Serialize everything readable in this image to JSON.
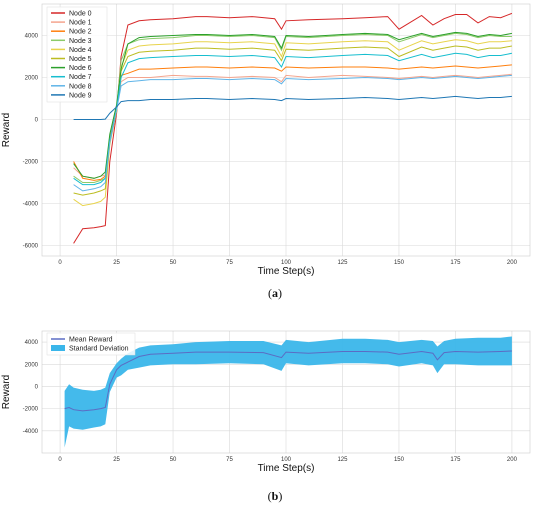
{
  "captions": {
    "a_label": "a",
    "b_label": "b"
  },
  "chart_data": [
    {
      "type": "line",
      "xlabel": "Time Step(s)",
      "ylabel": "Reward",
      "xlim": [
        -8,
        208
      ],
      "ylim": [
        -6500,
        5500
      ],
      "xticks": [
        0,
        25,
        50,
        75,
        100,
        125,
        150,
        175,
        200
      ],
      "yticks": [
        -6000,
        -4000,
        -2000,
        0,
        2000,
        4000
      ],
      "legend_position": "top-left",
      "grid": true,
      "series": [
        {
          "name": "Node 0",
          "color": "#d62728",
          "x": [
            6,
            10,
            15,
            18,
            20,
            22,
            25,
            27,
            30,
            35,
            40,
            50,
            60,
            65,
            75,
            85,
            95,
            98,
            100,
            110,
            125,
            135,
            145,
            150,
            160,
            165,
            170,
            175,
            180,
            185,
            190,
            195,
            200
          ],
          "y": [
            -5900,
            -5200,
            -5150,
            -5100,
            -5050,
            -2000,
            300,
            3000,
            4500,
            4700,
            4750,
            4800,
            4900,
            4900,
            4850,
            4900,
            4800,
            4300,
            4700,
            4750,
            4800,
            4850,
            4900,
            4300,
            4950,
            4500,
            4800,
            5000,
            5000,
            4600,
            4900,
            4850,
            5050
          ]
        },
        {
          "name": "Node 1",
          "color": "#f4a58e",
          "x": [
            6,
            10,
            15,
            18,
            20,
            22,
            25,
            27,
            30,
            35,
            40,
            50,
            60,
            65,
            75,
            85,
            95,
            98,
            100,
            110,
            125,
            135,
            145,
            150,
            160,
            165,
            170,
            175,
            180,
            185,
            190,
            195,
            200
          ],
          "y": [
            -2300,
            -2700,
            -2800,
            -2700,
            -2650,
            -800,
            600,
            1800,
            2000,
            2000,
            2000,
            2100,
            2050,
            2050,
            2000,
            2050,
            2000,
            1800,
            2100,
            2000,
            2100,
            2050,
            2000,
            1950,
            2050,
            2000,
            2050,
            2100,
            2050,
            2000,
            2050,
            2100,
            2150
          ]
        },
        {
          "name": "Node 2",
          "color": "#ff7f0e",
          "x": [
            6,
            10,
            15,
            18,
            20,
            22,
            25,
            27,
            30,
            35,
            40,
            50,
            60,
            65,
            75,
            85,
            95,
            98,
            100,
            110,
            125,
            135,
            145,
            150,
            160,
            165,
            170,
            175,
            180,
            185,
            190,
            195,
            200
          ],
          "y": [
            -2000,
            -2800,
            -2900,
            -2850,
            -2700,
            -900,
            400,
            2100,
            2200,
            2400,
            2400,
            2450,
            2500,
            2500,
            2450,
            2500,
            2450,
            2300,
            2500,
            2450,
            2500,
            2500,
            2450,
            2400,
            2500,
            2450,
            2500,
            2550,
            2500,
            2450,
            2500,
            2550,
            2600
          ]
        },
        {
          "name": "Node 3",
          "color": "#8ccb6a",
          "x": [
            6,
            10,
            15,
            18,
            20,
            22,
            25,
            27,
            30,
            35,
            40,
            50,
            60,
            65,
            75,
            85,
            95,
            98,
            100,
            110,
            125,
            135,
            145,
            150,
            160,
            165,
            170,
            175,
            180,
            185,
            190,
            195,
            200
          ],
          "y": [
            -2700,
            -3000,
            -3000,
            -2900,
            -2800,
            -1000,
            500,
            2800,
            3600,
            3800,
            3850,
            3900,
            4000,
            4000,
            3950,
            4000,
            3900,
            3300,
            3950,
            3900,
            4000,
            4050,
            4000,
            3700,
            4050,
            3900,
            4000,
            4100,
            4050,
            3900,
            4000,
            3950,
            3950
          ]
        },
        {
          "name": "Node 4",
          "color": "#e8d44d",
          "x": [
            6,
            10,
            15,
            18,
            20,
            22,
            25,
            27,
            30,
            35,
            40,
            50,
            60,
            65,
            75,
            85,
            95,
            98,
            100,
            110,
            125,
            135,
            145,
            150,
            160,
            165,
            170,
            175,
            180,
            185,
            190,
            195,
            200
          ],
          "y": [
            -3800,
            -4100,
            -4000,
            -3900,
            -3700,
            -1200,
            400,
            2500,
            3300,
            3500,
            3550,
            3600,
            3700,
            3700,
            3650,
            3700,
            3600,
            3000,
            3650,
            3600,
            3700,
            3750,
            3700,
            3300,
            3750,
            3600,
            3700,
            3800,
            3750,
            3600,
            3700,
            3700,
            3750
          ]
        },
        {
          "name": "Node 5",
          "color": "#bcbd22",
          "x": [
            6,
            10,
            15,
            18,
            20,
            22,
            25,
            27,
            30,
            35,
            40,
            50,
            60,
            65,
            75,
            85,
            95,
            98,
            100,
            110,
            125,
            135,
            145,
            150,
            160,
            165,
            170,
            175,
            180,
            185,
            190,
            195,
            200
          ],
          "y": [
            -3500,
            -3600,
            -3500,
            -3400,
            -3300,
            -1100,
            450,
            2300,
            3000,
            3200,
            3250,
            3300,
            3400,
            3400,
            3350,
            3400,
            3300,
            2800,
            3350,
            3300,
            3400,
            3450,
            3400,
            3000,
            3450,
            3300,
            3400,
            3500,
            3450,
            3300,
            3400,
            3400,
            3500
          ]
        },
        {
          "name": "Node 6",
          "color": "#2ca02c",
          "x": [
            6,
            10,
            15,
            18,
            20,
            22,
            25,
            27,
            30,
            35,
            40,
            50,
            60,
            65,
            75,
            85,
            95,
            98,
            100,
            110,
            125,
            135,
            145,
            150,
            160,
            165,
            170,
            175,
            180,
            185,
            190,
            195,
            200
          ],
          "y": [
            -2100,
            -2700,
            -2800,
            -2700,
            -2500,
            -700,
            700,
            2400,
            3600,
            3900,
            3950,
            4000,
            4050,
            4050,
            4000,
            4050,
            3950,
            3400,
            4000,
            3950,
            4050,
            4100,
            4050,
            3800,
            4100,
            3950,
            4050,
            4150,
            4100,
            3950,
            4050,
            4000,
            4100
          ]
        },
        {
          "name": "Node 7",
          "color": "#17becf",
          "x": [
            6,
            10,
            15,
            18,
            20,
            22,
            25,
            27,
            30,
            35,
            40,
            50,
            60,
            65,
            75,
            85,
            95,
            98,
            100,
            110,
            125,
            135,
            145,
            150,
            160,
            165,
            170,
            175,
            180,
            185,
            190,
            195,
            200
          ],
          "y": [
            -2800,
            -3100,
            -3100,
            -3000,
            -2800,
            -1000,
            500,
            2000,
            2700,
            2900,
            2950,
            3000,
            3050,
            3050,
            3000,
            3050,
            2950,
            2500,
            3000,
            2950,
            3050,
            3100,
            3050,
            2800,
            3100,
            2950,
            3050,
            3150,
            3100,
            2950,
            3050,
            3050,
            3150
          ]
        },
        {
          "name": "Node 8",
          "color": "#5fb4e8",
          "x": [
            6,
            10,
            15,
            18,
            20,
            22,
            25,
            27,
            30,
            35,
            40,
            50,
            60,
            65,
            75,
            85,
            95,
            98,
            100,
            110,
            125,
            135,
            145,
            150,
            160,
            165,
            170,
            175,
            180,
            185,
            190,
            195,
            200
          ],
          "y": [
            -3100,
            -3400,
            -3300,
            -3200,
            -3000,
            -1100,
            450,
            1600,
            1800,
            1850,
            1900,
            1900,
            1950,
            1950,
            1900,
            1950,
            1900,
            1700,
            1950,
            1900,
            1950,
            2000,
            1950,
            1900,
            2000,
            1950,
            2000,
            2050,
            2000,
            1950,
            2000,
            2050,
            2100
          ]
        },
        {
          "name": "Node 9",
          "color": "#1f77b4",
          "x": [
            6,
            10,
            15,
            18,
            20,
            22,
            25,
            27,
            30,
            35,
            40,
            50,
            60,
            65,
            75,
            85,
            95,
            98,
            100,
            110,
            125,
            135,
            145,
            150,
            160,
            165,
            170,
            175,
            180,
            185,
            190,
            195,
            200
          ],
          "y": [
            0,
            0,
            0,
            0,
            20,
            300,
            600,
            850,
            900,
            900,
            950,
            950,
            1000,
            1000,
            950,
            1000,
            950,
            900,
            1000,
            950,
            1000,
            1050,
            1000,
            950,
            1050,
            1000,
            1050,
            1100,
            1050,
            1000,
            1050,
            1050,
            1100
          ]
        }
      ]
    },
    {
      "type": "area",
      "xlabel": "Time Step(s)",
      "ylabel": "Reward",
      "xlim": [
        -8,
        208
      ],
      "ylim": [
        -6000,
        5000
      ],
      "xticks": [
        0,
        25,
        50,
        75,
        100,
        125,
        150,
        175,
        200
      ],
      "yticks": [
        -4000,
        -2000,
        0,
        2000,
        4000
      ],
      "legend_position": "top-left",
      "grid": true,
      "series": [
        {
          "name": "Mean Reward",
          "color": "#5b6cc4",
          "x": [
            2,
            4,
            6,
            10,
            15,
            18,
            20,
            22,
            25,
            27,
            30,
            35,
            40,
            50,
            60,
            75,
            90,
            98,
            100,
            110,
            125,
            135,
            145,
            150,
            160,
            165,
            167,
            170,
            175,
            185,
            195,
            200
          ],
          "y": [
            -2000,
            -1900,
            -2100,
            -2200,
            -2100,
            -2000,
            -1900,
            200,
            1500,
            1900,
            2200,
            2700,
            2900,
            3000,
            3100,
            3100,
            3050,
            2600,
            3100,
            3000,
            3150,
            3150,
            3100,
            2900,
            3150,
            3000,
            2400,
            3050,
            3150,
            3100,
            3150,
            3200
          ]
        },
        {
          "name": "Standard Deviation",
          "color": "#3ab6ea",
          "x": [
            2,
            4,
            6,
            10,
            15,
            18,
            20,
            22,
            25,
            27,
            30,
            35,
            40,
            50,
            60,
            75,
            90,
            98,
            100,
            110,
            125,
            135,
            145,
            150,
            160,
            165,
            167,
            170,
            175,
            185,
            195,
            200
          ],
          "lower": [
            -5500,
            -3600,
            -3800,
            -3900,
            -3700,
            -3600,
            -3400,
            -500,
            800,
            1000,
            1500,
            1700,
            1900,
            2000,
            2000,
            2100,
            2000,
            1400,
            2100,
            1900,
            2100,
            2100,
            2000,
            1800,
            2100,
            1900,
            1200,
            2000,
            2000,
            1900,
            1900,
            1900
          ],
          "upper": [
            -400,
            200,
            -100,
            -300,
            -400,
            -300,
            -100,
            1200,
            2100,
            2500,
            3000,
            3500,
            3700,
            3800,
            4000,
            4100,
            4100,
            3700,
            4200,
            4000,
            4300,
            4300,
            4200,
            4000,
            4200,
            4100,
            3600,
            4100,
            4300,
            4400,
            4400,
            4500
          ]
        }
      ]
    }
  ]
}
